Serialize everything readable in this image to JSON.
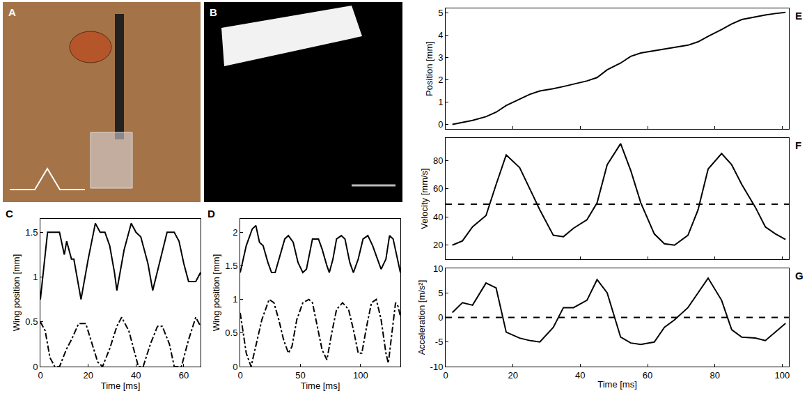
{
  "chart_data": [
    {
      "type": "image",
      "title": "A"
    },
    {
      "type": "image",
      "title": "B"
    },
    {
      "type": "line",
      "title": "C",
      "x_label": "Time [ms]",
      "y_label": "Wing position [mm]",
      "xlim": [
        0,
        67
      ],
      "xticks": [
        0,
        20,
        40,
        60
      ],
      "ylim": [
        0,
        1.65
      ],
      "yticks": [
        0,
        0.5,
        1,
        1.5
      ],
      "series": [
        {
          "x": [
            0,
            3,
            8,
            10,
            11,
            13,
            14,
            17,
            20,
            23,
            25,
            27,
            29,
            31,
            32,
            35,
            38,
            40,
            42,
            45,
            47,
            51,
            53,
            56,
            58,
            60,
            62,
            65,
            67
          ],
          "values": [
            0.75,
            1.5,
            1.5,
            1.25,
            1.4,
            1.2,
            1.2,
            0.75,
            1.2,
            1.6,
            1.5,
            1.5,
            1.35,
            1.05,
            0.85,
            1.3,
            1.6,
            1.5,
            1.45,
            1.15,
            0.85,
            1.3,
            1.5,
            1.5,
            1.4,
            1.15,
            0.95,
            0.95,
            1.05
          ],
          "color": "#000000",
          "line_style": "solid"
        },
        {
          "x": [
            0,
            2,
            4,
            6,
            8,
            11,
            13,
            16,
            19,
            21,
            24,
            26,
            29,
            32,
            34,
            37,
            39,
            41,
            43,
            46,
            49,
            51,
            54,
            56,
            59,
            62,
            65,
            67
          ],
          "values": [
            0.5,
            0.4,
            0.1,
            0,
            0,
            0.2,
            0.3,
            0.48,
            0.48,
            0.3,
            0.05,
            0,
            0.2,
            0.45,
            0.55,
            0.4,
            0.2,
            0,
            0,
            0.25,
            0.45,
            0.45,
            0.25,
            0,
            0,
            0.3,
            0.55,
            0.45
          ],
          "color": "#000000",
          "line_style": "dashdot"
        }
      ]
    },
    {
      "type": "line",
      "title": "D",
      "x_label": "Time [ms]",
      "y_label": "Wing position [mm]",
      "xlim": [
        0,
        133
      ],
      "xticks": [
        0,
        50,
        100
      ],
      "ylim": [
        0,
        2.2
      ],
      "yticks": [
        0,
        0.5,
        1,
        1.5,
        2
      ],
      "series": [
        {
          "x": [
            0,
            5,
            10,
            13,
            16,
            19,
            23,
            26,
            29,
            33,
            37,
            40,
            44,
            48,
            52,
            55,
            60,
            65,
            68,
            72,
            74,
            77,
            80,
            84,
            87,
            91,
            94,
            98,
            102,
            106,
            110,
            114,
            117,
            121,
            124,
            127,
            130,
            133
          ],
          "values": [
            1.4,
            1.8,
            2.05,
            2.1,
            1.85,
            1.8,
            1.55,
            1.4,
            1.4,
            1.65,
            1.9,
            1.95,
            1.85,
            1.55,
            1.4,
            1.45,
            1.9,
            1.9,
            1.75,
            1.5,
            1.4,
            1.6,
            1.9,
            1.95,
            1.9,
            1.55,
            1.4,
            1.6,
            1.9,
            1.95,
            1.8,
            1.6,
            1.45,
            1.6,
            1.95,
            1.9,
            1.65,
            1.4
          ],
          "color": "#000000",
          "line_style": "solid"
        },
        {
          "x": [
            0,
            5,
            9,
            13,
            18,
            24,
            28,
            32,
            36,
            40,
            43,
            47,
            52,
            57,
            60,
            64,
            68,
            72,
            76,
            80,
            85,
            90,
            94,
            98,
            101,
            105,
            109,
            113,
            117,
            121,
            123,
            126,
            129,
            131,
            133
          ],
          "values": [
            0.8,
            0.2,
            0,
            0.3,
            0.7,
            1.0,
            0.95,
            0.7,
            0.4,
            0.2,
            0.3,
            0.7,
            0.95,
            1.0,
            0.95,
            0.6,
            0.25,
            0.1,
            0.5,
            0.85,
            0.95,
            0.85,
            0.55,
            0.2,
            0.2,
            0.6,
            0.95,
            1.0,
            0.7,
            0.2,
            0.05,
            0.5,
            0.95,
            0.9,
            0.75
          ],
          "color": "#000000",
          "line_style": "dashdot"
        }
      ]
    },
    {
      "type": "line",
      "title": "E",
      "y_label": "Position [mm]",
      "tick_labels": "y",
      "xlim": [
        0,
        102
      ],
      "xticks": [
        0,
        20,
        40,
        60,
        80,
        100
      ],
      "ylim": [
        -0.2,
        5.2
      ],
      "yticks": [
        0,
        1,
        2,
        3,
        4,
        5
      ],
      "x": [
        2,
        5,
        8,
        12,
        15,
        18,
        22,
        25,
        28,
        32,
        35,
        38,
        42,
        45,
        48,
        52,
        55,
        58,
        62,
        65,
        68,
        72,
        75,
        78,
        82,
        85,
        88,
        92,
        95,
        98,
        101
      ],
      "series": [
        {
          "values": [
            0,
            0.08,
            0.18,
            0.35,
            0.55,
            0.85,
            1.15,
            1.35,
            1.5,
            1.6,
            1.7,
            1.8,
            1.95,
            2.1,
            2.45,
            2.75,
            3.05,
            3.2,
            3.3,
            3.38,
            3.45,
            3.55,
            3.7,
            3.95,
            4.25,
            4.5,
            4.7,
            4.82,
            4.9,
            4.97,
            5.02
          ],
          "color": "#000000",
          "line_style": "solid"
        }
      ]
    },
    {
      "type": "line",
      "title": "F",
      "y_label": "Velocity [mm/s]",
      "tick_labels": "y",
      "xlim": [
        0,
        102
      ],
      "xticks": [
        0,
        20,
        40,
        60,
        80,
        100
      ],
      "ylim": [
        10,
        96
      ],
      "yticks": [
        20,
        40,
        60,
        80
      ],
      "x": [
        2,
        5,
        8,
        12,
        15,
        18,
        22,
        25,
        28,
        32,
        35,
        38,
        42,
        45,
        48,
        52,
        55,
        58,
        62,
        65,
        68,
        72,
        75,
        78,
        82,
        85,
        88,
        92,
        95,
        98,
        101
      ],
      "series": [
        {
          "values": [
            20,
            23,
            33,
            41,
            63,
            84,
            75,
            60,
            45,
            27,
            26,
            32,
            38,
            50,
            77,
            92,
            73,
            50,
            28,
            21,
            20,
            27,
            45,
            74,
            85,
            77,
            63,
            47,
            33,
            28,
            24
          ],
          "color": "#000000",
          "line_style": "solid"
        },
        {
          "x": [
            0,
            102
          ],
          "values": [
            49,
            49
          ],
          "color": "#000000",
          "line_style": "dashed"
        }
      ]
    },
    {
      "type": "line",
      "title": "G",
      "x_label": "Time [ms]",
      "y_label": "Acceleration [m/s²]",
      "xlim": [
        0,
        102
      ],
      "xticks": [
        0,
        20,
        40,
        60,
        80,
        100
      ],
      "ylim": [
        -10,
        10
      ],
      "yticks": [
        -10,
        -5,
        0,
        5,
        10
      ],
      "x": [
        2,
        5,
        8,
        12,
        15,
        18,
        22,
        25,
        28,
        32,
        35,
        38,
        42,
        45,
        48,
        52,
        55,
        58,
        62,
        65,
        68,
        72,
        75,
        78,
        82,
        85,
        88,
        92,
        95,
        98,
        101
      ],
      "series": [
        {
          "values": [
            1,
            3,
            2.5,
            7,
            6,
            -3,
            -4.2,
            -4.7,
            -5,
            -2,
            2,
            2,
            3.5,
            7.7,
            5,
            -4,
            -5.2,
            -5.5,
            -5,
            -2,
            -0.5,
            2,
            5,
            8,
            3.5,
            -2.5,
            -4,
            -4.2,
            -4.7,
            -3,
            -1.2
          ],
          "color": "#000000",
          "line_style": "solid"
        },
        {
          "x": [
            0,
            102
          ],
          "values": [
            0,
            0
          ],
          "color": "#000000",
          "line_style": "dashed"
        }
      ]
    }
  ]
}
